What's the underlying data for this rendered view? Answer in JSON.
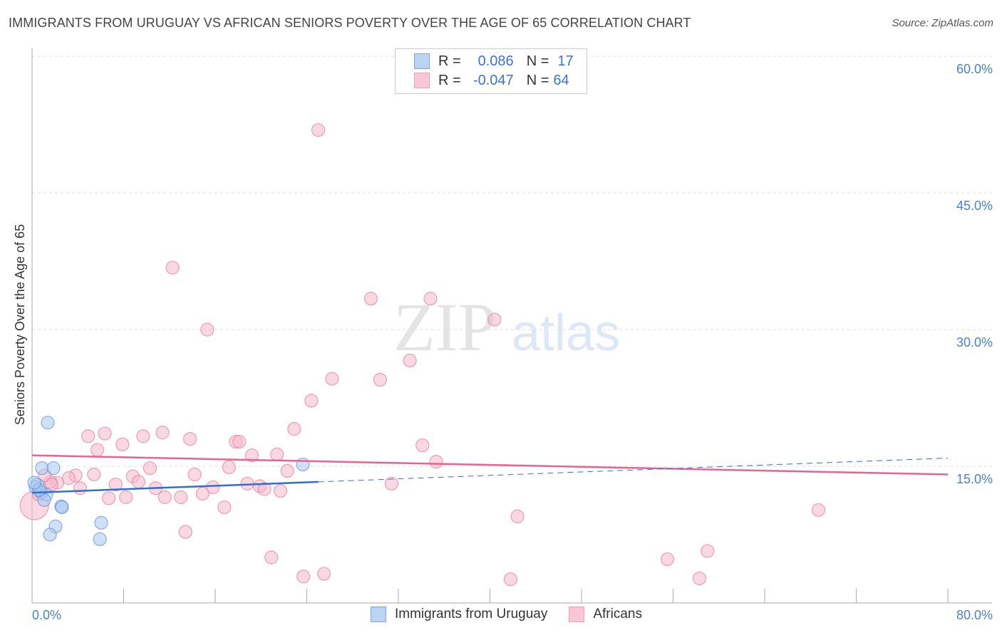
{
  "title": "IMMIGRANTS FROM URUGUAY VS AFRICAN SENIORS POVERTY OVER THE AGE OF 65 CORRELATION CHART",
  "source": "Source: ZipAtlas.com",
  "watermark": "ZIPatlas",
  "legend": {
    "rows": [
      {
        "r_label": "R =",
        "r": "0.086",
        "n_label": "N =",
        "n": "17"
      },
      {
        "r_label": "R =",
        "r": "-0.047",
        "n_label": "N =",
        "n": "64"
      }
    ]
  },
  "colors": {
    "blue": "#5b8fd8",
    "blue_fill": "#a9c8f0",
    "pink": "#e8799c",
    "pink_fill": "#f5b8cb",
    "blue_line": "#2f6fd0",
    "pink_line": "#e8638f"
  },
  "chart_data": {
    "type": "scatter",
    "title": "IMMIGRANTS FROM URUGUAY VS AFRICAN SENIORS POVERTY OVER THE AGE OF 65 CORRELATION CHART",
    "xlabel": "",
    "ylabel": "Seniors Poverty Over the Age of 65",
    "xlim": [
      0,
      80
    ],
    "ylim": [
      0,
      60
    ],
    "x_tick_labels": [
      "0.0%",
      "80.0%"
    ],
    "y_tick_labels": [
      {
        "v": 15,
        "label": "15.0%"
      },
      {
        "v": 30,
        "label": "30.0%"
      },
      {
        "v": 45,
        "label": "45.0%"
      },
      {
        "v": 60,
        "label": "60.0%"
      }
    ],
    "legend_position": "top-center",
    "series": [
      {
        "name": "Immigrants from Uruguay",
        "r": 0.086,
        "n": 17,
        "trend": {
          "x0": 0,
          "y0": 12.1,
          "x1": 80,
          "y1": 15.9,
          "solid_until": 25
        },
        "points": [
          [
            1.37,
            19.8
          ],
          [
            0.87,
            14.8
          ],
          [
            1.87,
            14.8
          ],
          [
            0.44,
            13.0
          ],
          [
            0.31,
            12.7
          ],
          [
            0.81,
            12.1
          ],
          [
            1.25,
            11.9
          ],
          [
            1.06,
            11.3
          ],
          [
            2.55,
            10.6
          ],
          [
            2.62,
            10.5
          ],
          [
            2.05,
            8.4
          ],
          [
            1.56,
            7.5
          ],
          [
            6.04,
            8.8
          ],
          [
            5.92,
            7.0
          ],
          [
            23.66,
            15.2
          ],
          [
            0.62,
            12.4
          ],
          [
            0.19,
            13.2
          ]
        ]
      },
      {
        "name": "Africans",
        "r": -0.047,
        "n": 64,
        "trend": {
          "x0": 0,
          "y0": 16.2,
          "x1": 80,
          "y1": 14.1
        },
        "points": [
          [
            25.0,
            51.9
          ],
          [
            12.27,
            36.8
          ],
          [
            15.3,
            30.0
          ],
          [
            29.6,
            33.4
          ],
          [
            34.8,
            33.4
          ],
          [
            40.4,
            31.1
          ],
          [
            33.0,
            26.6
          ],
          [
            26.2,
            24.6
          ],
          [
            30.4,
            24.5
          ],
          [
            24.4,
            22.2
          ],
          [
            22.9,
            19.1
          ],
          [
            6.35,
            18.6
          ],
          [
            4.9,
            18.3
          ],
          [
            9.7,
            18.3
          ],
          [
            11.4,
            18.7
          ],
          [
            13.8,
            18.0
          ],
          [
            7.9,
            17.4
          ],
          [
            17.8,
            17.7
          ],
          [
            18.1,
            17.7
          ],
          [
            5.7,
            16.8
          ],
          [
            19.2,
            16.2
          ],
          [
            21.4,
            16.3
          ],
          [
            34.1,
            17.3
          ],
          [
            35.3,
            15.5
          ],
          [
            10.3,
            14.8
          ],
          [
            17.2,
            14.9
          ],
          [
            22.3,
            14.5
          ],
          [
            5.4,
            14.1
          ],
          [
            3.8,
            14.0
          ],
          [
            8.8,
            13.9
          ],
          [
            14.2,
            14.1
          ],
          [
            3.2,
            13.7
          ],
          [
            2.2,
            13.2
          ],
          [
            9.3,
            13.3
          ],
          [
            7.3,
            13.0
          ],
          [
            18.8,
            13.1
          ],
          [
            19.9,
            12.8
          ],
          [
            31.4,
            13.1
          ],
          [
            4.2,
            12.6
          ],
          [
            10.8,
            12.6
          ],
          [
            15.8,
            12.7
          ],
          [
            20.3,
            12.5
          ],
          [
            14.9,
            12.0
          ],
          [
            21.7,
            12.3
          ],
          [
            6.7,
            11.5
          ],
          [
            8.2,
            11.6
          ],
          [
            11.6,
            11.6
          ],
          [
            13.0,
            11.6
          ],
          [
            16.8,
            10.5
          ],
          [
            68.7,
            10.2
          ],
          [
            42.4,
            9.5
          ],
          [
            13.4,
            7.8
          ],
          [
            59.0,
            5.7
          ],
          [
            20.9,
            5.0
          ],
          [
            55.5,
            4.8
          ],
          [
            25.5,
            3.2
          ],
          [
            23.7,
            2.9
          ],
          [
            41.8,
            2.6
          ],
          [
            58.3,
            2.7
          ],
          [
            0.2,
            10.7
          ],
          [
            1.6,
            13.3
          ],
          [
            1.1,
            14.0
          ],
          [
            0.6,
            11.9
          ],
          [
            1.7,
            13.0
          ]
        ]
      }
    ]
  }
}
